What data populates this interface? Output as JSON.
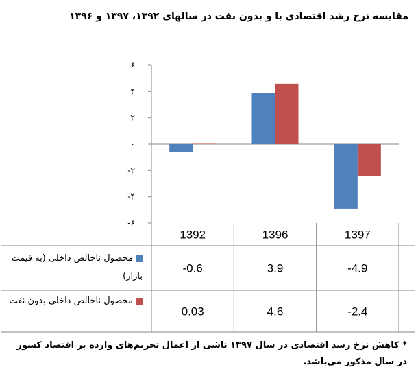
{
  "chart_data": {
    "type": "bar",
    "title": "مقایسه نرخ رشد اقتصادی با و بدون نفت در سالهای ۱۳۹۲، ۱۳۹۷ و ۱۳۹۶",
    "categories": [
      "1392",
      "1396",
      "1397"
    ],
    "series": [
      {
        "name": "محصول ناخالص داخلی (به قیمت بازار)",
        "values": [
          -0.6,
          3.9,
          -4.9
        ],
        "color": "#4f81bd",
        "labels": [
          "-0.6",
          "3.9",
          "-4.9"
        ]
      },
      {
        "name": "محصول ناخالص داخلی بدون نفت",
        "values": [
          0.03,
          4.6,
          -2.4
        ],
        "color": "#c0504d",
        "labels": [
          "0.03",
          "4.6",
          "-2.4"
        ]
      }
    ],
    "ylim": [
      -6,
      6
    ],
    "yticks": [
      6,
      4,
      2,
      0,
      -2,
      -4,
      -6
    ],
    "ytick_labels": [
      "۶",
      "۴",
      "۲",
      "۰",
      "-۲",
      "-۴",
      "-۶"
    ],
    "grid": false,
    "legend": "data-table"
  },
  "note": "* کاهش نرخ رشد اقتصادی در سال ۱۳۹۷ ناشی از اعمال تحریم‌های وارده بر اقتصاد کشور در سال مذکور می‌باشد."
}
